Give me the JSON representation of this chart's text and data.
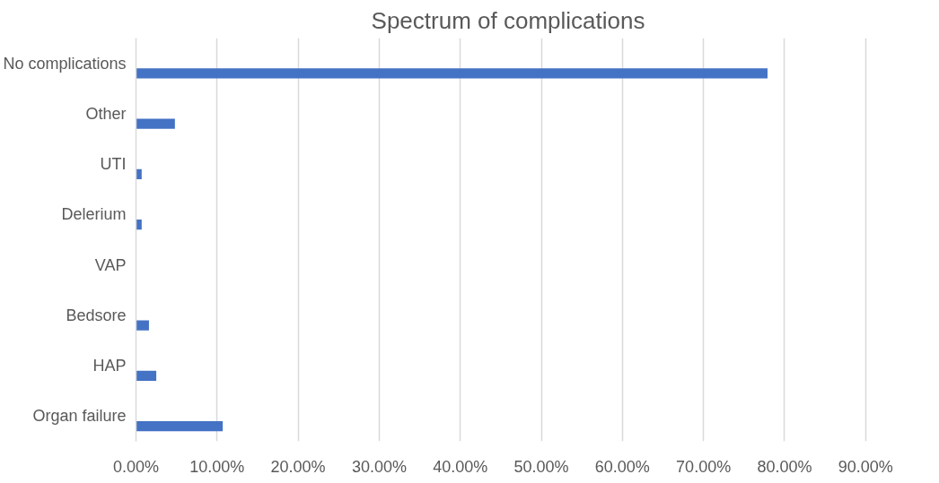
{
  "chart_data": {
    "type": "bar",
    "orientation": "horizontal",
    "title": "Spectrum of complications",
    "categories": [
      "No complications",
      "Other",
      "UTI",
      "Delerium",
      "VAP",
      "Bedsore",
      "HAP",
      "Organ failure"
    ],
    "values": [
      77.9,
      4.8,
      0.7,
      0.7,
      0,
      1.6,
      2.5,
      10.7
    ],
    "color": "#4472c4",
    "xlim": [
      0,
      90
    ],
    "xticks": [
      {
        "value": 0,
        "label": "0.00%"
      },
      {
        "value": 10,
        "label": "10.00%"
      },
      {
        "value": 20,
        "label": "20.00%"
      },
      {
        "value": 30,
        "label": "30.00%"
      },
      {
        "value": 40,
        "label": "40.00%"
      },
      {
        "value": 50,
        "label": "50.00%"
      },
      {
        "value": 60,
        "label": "60.00%"
      },
      {
        "value": 70,
        "label": "70.00%"
      },
      {
        "value": 80,
        "label": "80.00%"
      },
      {
        "value": 90,
        "label": "90.00%"
      }
    ],
    "grid": "x"
  }
}
